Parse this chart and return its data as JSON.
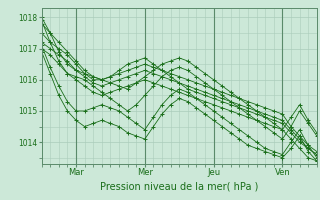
{
  "title": "",
  "xlabel": "Pression niveau de la mer( hPa )",
  "bg_color": "#cce8d8",
  "plot_bg_color": "#cce8d8",
  "grid_color": "#aaccbb",
  "line_color": "#1a6e1a",
  "marker_color": "#1a6e1a",
  "spine_color": "#5a8a6a",
  "yticks": [
    1014,
    1015,
    1016,
    1017,
    1018
  ],
  "ylim": [
    1013.3,
    1018.3
  ],
  "xlim": [
    0,
    96
  ],
  "xtick_positions": [
    12,
    36,
    60,
    84
  ],
  "xtick_labels": [
    "Mar",
    "Mer",
    "Jeu",
    "Ven"
  ],
  "vlines": [
    12,
    36,
    60,
    84
  ],
  "hours": [
    0,
    3,
    6,
    9,
    12,
    15,
    18,
    21,
    24,
    27,
    30,
    33,
    36,
    39,
    42,
    45,
    48,
    51,
    54,
    57,
    60,
    63,
    66,
    69,
    72,
    75,
    78,
    81,
    84,
    87,
    90,
    93,
    96
  ],
  "series": [
    [
      1017.5,
      1017.2,
      1017.0,
      1016.8,
      1016.5,
      1016.2,
      1016.0,
      1016.0,
      1016.1,
      1016.2,
      1016.3,
      1016.4,
      1016.5,
      1016.4,
      1016.3,
      1016.2,
      1016.1,
      1016.0,
      1015.9,
      1015.8,
      1015.7,
      1015.6,
      1015.5,
      1015.4,
      1015.3,
      1015.2,
      1015.1,
      1015.0,
      1014.9,
      1014.5,
      1014.2,
      1013.9,
      1013.7
    ],
    [
      1017.8,
      1017.5,
      1017.2,
      1016.9,
      1016.6,
      1016.3,
      1016.1,
      1016.0,
      1016.1,
      1016.3,
      1016.5,
      1016.6,
      1016.7,
      1016.5,
      1016.3,
      1016.1,
      1015.9,
      1015.7,
      1015.6,
      1015.5,
      1015.4,
      1015.3,
      1015.2,
      1015.1,
      1015.0,
      1014.9,
      1014.8,
      1014.7,
      1014.6,
      1014.3,
      1014.0,
      1013.8,
      1013.6
    ],
    [
      1017.2,
      1017.0,
      1016.8,
      1016.6,
      1016.3,
      1016.1,
      1015.9,
      1015.8,
      1015.9,
      1016.0,
      1016.1,
      1016.2,
      1016.3,
      1016.2,
      1016.1,
      1016.0,
      1015.9,
      1015.8,
      1015.7,
      1015.6,
      1015.5,
      1015.4,
      1015.3,
      1015.2,
      1015.1,
      1015.0,
      1014.9,
      1014.8,
      1014.7,
      1014.4,
      1014.1,
      1013.8,
      1013.6
    ],
    [
      1017.0,
      1016.8,
      1016.5,
      1016.2,
      1016.0,
      1015.8,
      1015.6,
      1015.5,
      1015.6,
      1015.7,
      1015.8,
      1015.9,
      1016.0,
      1015.9,
      1015.8,
      1015.7,
      1015.6,
      1015.5,
      1015.4,
      1015.3,
      1015.2,
      1015.1,
      1015.0,
      1014.9,
      1014.8,
      1014.7,
      1014.6,
      1014.5,
      1014.4,
      1014.1,
      1013.8,
      1013.5,
      1013.4
    ],
    [
      1017.9,
      1017.2,
      1016.6,
      1016.2,
      1016.1,
      1016.0,
      1015.8,
      1015.6,
      1015.4,
      1015.2,
      1015.0,
      1015.2,
      1015.5,
      1015.8,
      1016.1,
      1016.3,
      1016.4,
      1016.3,
      1016.1,
      1015.9,
      1015.7,
      1015.5,
      1015.3,
      1015.1,
      1014.9,
      1014.7,
      1014.5,
      1014.3,
      1014.1,
      1014.5,
      1015.0,
      1014.6,
      1014.2
    ],
    [
      1018.0,
      1017.5,
      1016.9,
      1016.5,
      1016.3,
      1016.2,
      1016.1,
      1016.0,
      1015.9,
      1015.8,
      1015.7,
      1015.9,
      1016.1,
      1016.3,
      1016.5,
      1016.6,
      1016.7,
      1016.6,
      1016.4,
      1016.2,
      1016.0,
      1015.8,
      1015.6,
      1015.4,
      1015.2,
      1015.0,
      1014.8,
      1014.6,
      1014.4,
      1014.8,
      1015.2,
      1014.7,
      1014.3
    ],
    [
      1017.1,
      1016.4,
      1015.8,
      1015.3,
      1015.0,
      1015.0,
      1015.1,
      1015.2,
      1015.1,
      1015.0,
      1014.8,
      1014.6,
      1014.4,
      1014.8,
      1015.2,
      1015.5,
      1015.7,
      1015.6,
      1015.4,
      1015.2,
      1015.0,
      1014.8,
      1014.6,
      1014.4,
      1014.2,
      1014.0,
      1013.8,
      1013.7,
      1013.6,
      1014.0,
      1014.4,
      1013.9,
      1013.5
    ],
    [
      1016.9,
      1016.2,
      1015.5,
      1015.0,
      1014.7,
      1014.5,
      1014.6,
      1014.7,
      1014.6,
      1014.5,
      1014.3,
      1014.2,
      1014.1,
      1014.5,
      1014.9,
      1015.2,
      1015.4,
      1015.3,
      1015.1,
      1014.9,
      1014.7,
      1014.5,
      1014.3,
      1014.1,
      1013.9,
      1013.8,
      1013.7,
      1013.6,
      1013.5,
      1013.8,
      1014.2,
      1013.7,
      1013.4
    ]
  ]
}
